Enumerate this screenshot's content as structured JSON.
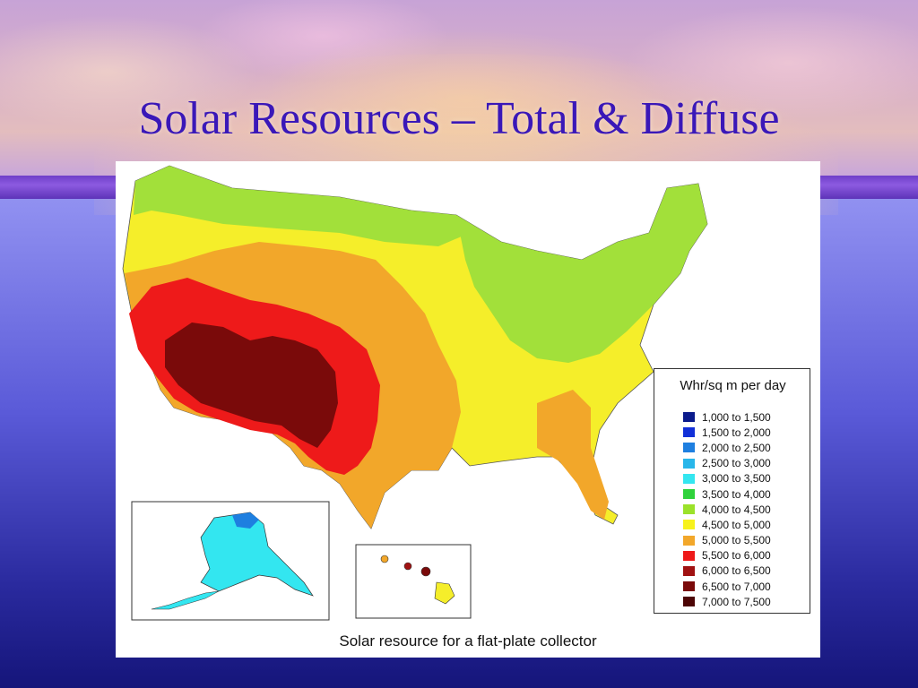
{
  "slide": {
    "title": "Solar Resources – Total & Diffuse"
  },
  "map": {
    "caption": "Solar resource for a flat-plate collector",
    "legend": {
      "title": "Whr/sq m per day",
      "ranges": [
        {
          "label": "1,000 to 1,500",
          "color": "#0b1b8c"
        },
        {
          "label": "1,500 to 2,000",
          "color": "#1230d8"
        },
        {
          "label": "2,000 to 2,500",
          "color": "#1e7fe0"
        },
        {
          "label": "2,500 to 3,000",
          "color": "#28b6ea"
        },
        {
          "label": "3,000 to 3,500",
          "color": "#33e6f0"
        },
        {
          "label": "3,500 to 4,000",
          "color": "#2fd23c"
        },
        {
          "label": "4,000 to 4,500",
          "color": "#9be22a"
        },
        {
          "label": "4,500 to 5,000",
          "color": "#f7f21c"
        },
        {
          "label": "5,000 to 5,500",
          "color": "#f2a72a"
        },
        {
          "label": "5,500 to 6,000",
          "color": "#ee1a1a"
        },
        {
          "label": "6,000 to 6,500",
          "color": "#a01212"
        },
        {
          "label": "6,500 to 7,000",
          "color": "#7a0a0a"
        },
        {
          "label": "7,000 to 7,500",
          "color": "#4d0505"
        }
      ]
    }
  }
}
